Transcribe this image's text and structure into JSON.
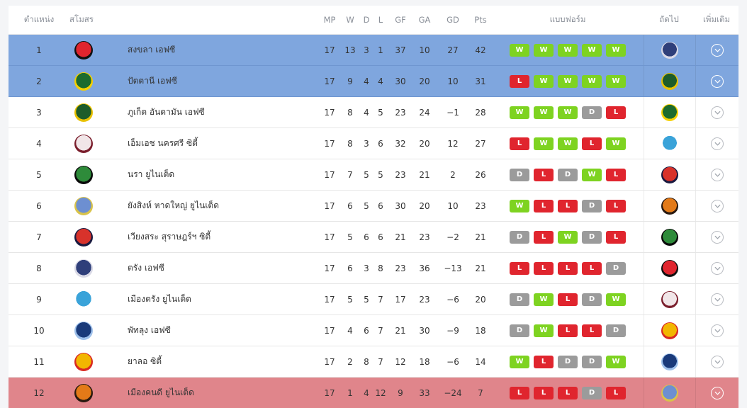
{
  "headers": {
    "pos": "ตำแหน่ง",
    "club": "สโมสร",
    "mp": "MP",
    "w": "W",
    "d": "D",
    "l": "L",
    "gf": "GF",
    "ga": "GA",
    "gd": "GD",
    "pts": "Pts",
    "form": "แบบฟอร์ม",
    "next": "ถัดไป",
    "more": "เพิ่มเติม"
  },
  "colors": {
    "win": "#7ed321",
    "loss": "#e0252e",
    "draw": "#9b9b9b",
    "promotion_row": "#7fa6de",
    "relegation_row": "#e0858b"
  },
  "rows": [
    {
      "pos": "1",
      "team": "สงขลา เอฟซี",
      "mp": "17",
      "w": "13",
      "d": "3",
      "l": "1",
      "gf": "37",
      "ga": "10",
      "gd": "27",
      "pts": "42",
      "form": [
        "W",
        "W",
        "W",
        "W",
        "W"
      ],
      "logo": "songkhla-crest",
      "next_logo": "trang-crest",
      "zone": "top"
    },
    {
      "pos": "2",
      "team": "ปัตตานี เอฟซี",
      "mp": "17",
      "w": "9",
      "d": "4",
      "l": "4",
      "gf": "30",
      "ga": "20",
      "gd": "10",
      "pts": "31",
      "form": [
        "L",
        "W",
        "W",
        "W",
        "W"
      ],
      "logo": "pattani-crest",
      "next_logo": "phuket-crest",
      "zone": "top"
    },
    {
      "pos": "3",
      "team": "ภูเก็ต อันดามัน เอฟซี",
      "mp": "17",
      "w": "8",
      "d": "4",
      "l": "5",
      "gf": "23",
      "ga": "24",
      "gd": "-1",
      "pts": "28",
      "form": [
        "W",
        "W",
        "W",
        "D",
        "L"
      ],
      "logo": "phuket-crest",
      "next_logo": "pattani-crest",
      "zone": ""
    },
    {
      "pos": "4",
      "team": "เอ็มเอช นครศรี ซิตี้",
      "mp": "17",
      "w": "8",
      "d": "3",
      "l": "6",
      "gf": "32",
      "ga": "20",
      "gd": "12",
      "pts": "27",
      "form": [
        "L",
        "W",
        "W",
        "L",
        "W"
      ],
      "logo": "mh-nakhonsi-crest",
      "next_logo": "muang-trang-crest",
      "zone": ""
    },
    {
      "pos": "5",
      "team": "นรา ยูไนเต็ด",
      "mp": "17",
      "w": "7",
      "d": "5",
      "l": "5",
      "gf": "23",
      "ga": "21",
      "gd": "2",
      "pts": "26",
      "form": [
        "D",
        "L",
        "D",
        "W",
        "L"
      ],
      "logo": "nara-crest",
      "next_logo": "wiang-sa-crest",
      "zone": ""
    },
    {
      "pos": "6",
      "team": "ยังสิงห์ หาดใหญ่ ยูไนเต็ด",
      "mp": "17",
      "w": "6",
      "d": "5",
      "l": "6",
      "gf": "30",
      "ga": "20",
      "gd": "10",
      "pts": "23",
      "form": [
        "W",
        "L",
        "L",
        "D",
        "L"
      ],
      "logo": "young-singh-crest",
      "next_logo": "muang-khon-di-crest",
      "zone": ""
    },
    {
      "pos": "7",
      "team": "เวียงสระ สุราษฎร์ฯ ซิตี้",
      "mp": "17",
      "w": "5",
      "d": "6",
      "l": "6",
      "gf": "21",
      "ga": "23",
      "gd": "-2",
      "pts": "21",
      "form": [
        "D",
        "L",
        "W",
        "D",
        "L"
      ],
      "logo": "wiang-sa-crest",
      "next_logo": "nara-crest",
      "zone": ""
    },
    {
      "pos": "8",
      "team": "ตรัง เอฟซี",
      "mp": "17",
      "w": "6",
      "d": "3",
      "l": "8",
      "gf": "23",
      "ga": "36",
      "gd": "-13",
      "pts": "21",
      "form": [
        "L",
        "L",
        "L",
        "L",
        "D"
      ],
      "logo": "trang-crest",
      "next_logo": "songkhla-crest",
      "zone": ""
    },
    {
      "pos": "9",
      "team": "เมืองตรัง ยูไนเต็ด",
      "mp": "17",
      "w": "5",
      "d": "5",
      "l": "7",
      "gf": "17",
      "ga": "23",
      "gd": "-6",
      "pts": "20",
      "form": [
        "D",
        "W",
        "L",
        "D",
        "W"
      ],
      "logo": "muang-trang-crest",
      "next_logo": "mh-nakhonsi-crest",
      "zone": ""
    },
    {
      "pos": "10",
      "team": "พัทลุง เอฟซี",
      "mp": "17",
      "w": "4",
      "d": "6",
      "l": "7",
      "gf": "21",
      "ga": "30",
      "gd": "-9",
      "pts": "18",
      "form": [
        "D",
        "W",
        "L",
        "L",
        "D"
      ],
      "logo": "phatthalung-crest",
      "next_logo": "yala-crest",
      "zone": ""
    },
    {
      "pos": "11",
      "team": "ยาลอ ซิตี้",
      "mp": "17",
      "w": "2",
      "d": "8",
      "l": "7",
      "gf": "12",
      "ga": "18",
      "gd": "-6",
      "pts": "14",
      "form": [
        "W",
        "L",
        "D",
        "D",
        "W"
      ],
      "logo": "yala-crest",
      "next_logo": "phatthalung-crest",
      "zone": ""
    },
    {
      "pos": "12",
      "team": "เมืองคนดี ยูไนเต็ด",
      "mp": "17",
      "w": "1",
      "d": "4",
      "l": "12",
      "gf": "9",
      "ga": "33",
      "gd": "-24",
      "pts": "7",
      "form": [
        "L",
        "L",
        "L",
        "D",
        "L"
      ],
      "logo": "muang-khon-di-crest",
      "next_logo": "young-singh-crest",
      "zone": "rel"
    }
  ]
}
